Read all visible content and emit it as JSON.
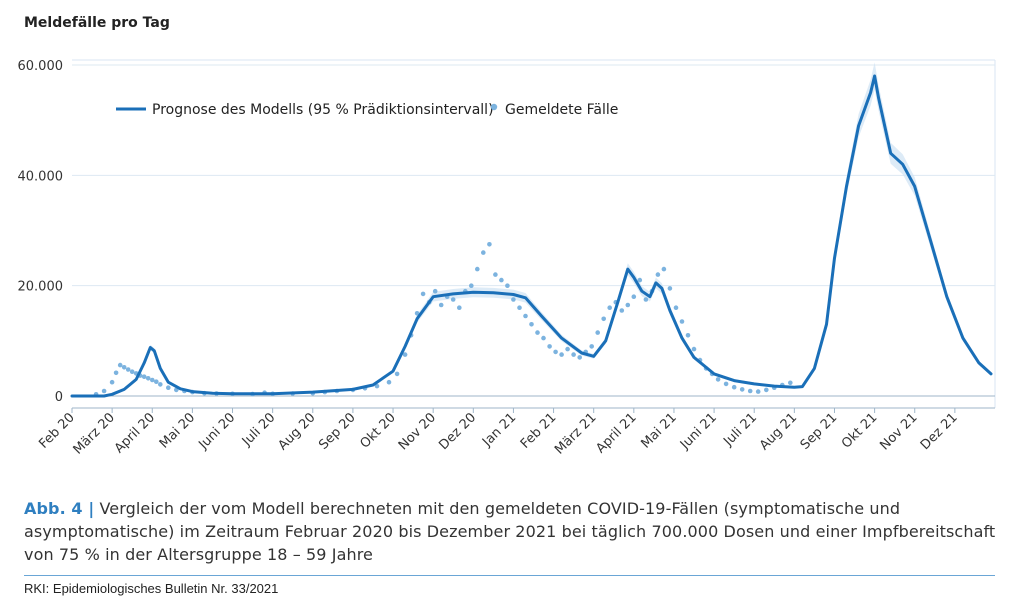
{
  "chart_data": {
    "type": "line",
    "ylabel": "Meldefälle pro Tag",
    "ylim": [
      0,
      60000
    ],
    "yticks": [
      0,
      20000,
      40000,
      60000
    ],
    "ytick_labels": [
      "0",
      "20.000",
      "40.000",
      "60.000"
    ],
    "x_categories": [
      "Feb 20",
      "März 20",
      "April 20",
      "Mai 20",
      "Juni 20",
      "Juli 20",
      "Aug 20",
      "Sep 20",
      "Okt 20",
      "Nov 20",
      "Dez 20",
      "Jan 21",
      "Feb 21",
      "März 21",
      "April 21",
      "Mai 21",
      "Juni 21",
      "Juli 21",
      "Aug 21",
      "Sep 21",
      "Okt 21",
      "Nov 21",
      "Dez 21"
    ],
    "legend_position": "top-left",
    "grid": "horizontal",
    "series": [
      {
        "name": "Prognose des Modells (95 % Prädiktionsintervall)",
        "kind": "line",
        "color": "#1a6fb8",
        "x": [
          0,
          0.8,
          1.0,
          1.3,
          1.6,
          1.8,
          1.95,
          2.05,
          2.2,
          2.4,
          2.7,
          3.0,
          3.5,
          4.0,
          5.0,
          6.0,
          7.0,
          7.5,
          8.0,
          8.3,
          8.6,
          9.0,
          9.5,
          10.0,
          10.5,
          11.0,
          11.3,
          11.7,
          12.2,
          12.7,
          13.0,
          13.3,
          13.6,
          13.85,
          14.0,
          14.2,
          14.4,
          14.55,
          14.7,
          14.9,
          15.2,
          15.5,
          16.0,
          16.5,
          17.0,
          17.5,
          18.0,
          18.2,
          18.5,
          18.8,
          19.0,
          19.3,
          19.6,
          19.9,
          20.0,
          20.1,
          20.4,
          20.7,
          21.0,
          21.4,
          21.8,
          22.2,
          22.6,
          22.9
        ],
        "y": [
          0,
          0,
          300,
          1200,
          3000,
          6000,
          8800,
          8200,
          5000,
          2500,
          1300,
          800,
          500,
          400,
          400,
          700,
          1200,
          2000,
          4500,
          9000,
          14000,
          18000,
          18500,
          18800,
          18700,
          18400,
          17800,
          14500,
          10500,
          7800,
          7200,
          10000,
          17000,
          23000,
          21500,
          19000,
          18000,
          20500,
          19500,
          15500,
          10500,
          7000,
          4000,
          2800,
          2200,
          1800,
          1600,
          1700,
          5000,
          13000,
          25000,
          38000,
          49000,
          55000,
          58000,
          54000,
          44000,
          42000,
          38000,
          28000,
          18000,
          10500,
          6000,
          4000
        ]
      },
      {
        "name": "Gemeldete Fälle",
        "kind": "scatter",
        "color": "#7cb3df",
        "x": [
          0.6,
          0.8,
          1.0,
          1.1,
          1.2,
          1.3,
          1.4,
          1.5,
          1.6,
          1.7,
          1.8,
          1.9,
          2.0,
          2.1,
          2.2,
          2.4,
          2.6,
          2.8,
          3.0,
          3.3,
          3.6,
          4.0,
          4.5,
          4.8,
          5.0,
          5.5,
          6.0,
          6.3,
          6.6,
          7.0,
          7.3,
          7.6,
          7.9,
          8.1,
          8.3,
          8.45,
          8.6,
          8.75,
          8.9,
          9.05,
          9.2,
          9.35,
          9.5,
          9.65,
          9.8,
          9.95,
          10.1,
          10.25,
          10.4,
          10.55,
          10.7,
          10.85,
          11.0,
          11.15,
          11.3,
          11.45,
          11.6,
          11.75,
          11.9,
          12.05,
          12.2,
          12.35,
          12.5,
          12.65,
          12.8,
          12.95,
          13.1,
          13.25,
          13.4,
          13.55,
          13.7,
          13.85,
          14.0,
          14.15,
          14.3,
          14.45,
          14.6,
          14.75,
          14.9,
          15.05,
          15.2,
          15.35,
          15.5,
          15.65,
          15.8,
          15.95,
          16.1,
          16.3,
          16.5,
          16.7,
          16.9,
          17.1,
          17.3,
          17.5,
          17.7,
          17.9
        ],
        "y": [
          300,
          900,
          2500,
          4200,
          5600,
          5200,
          4800,
          4400,
          4100,
          3700,
          3500,
          3200,
          2900,
          2600,
          2100,
          1500,
          1100,
          900,
          700,
          500,
          450,
          400,
          350,
          600,
          400,
          450,
          500,
          700,
          900,
          1100,
          1400,
          1800,
          2500,
          4000,
          7500,
          11000,
          15000,
          18500,
          17000,
          19000,
          16500,
          18000,
          17500,
          16000,
          19000,
          20000,
          23000,
          26000,
          27500,
          22000,
          21000,
          20000,
          17500,
          16000,
          14500,
          13000,
          11500,
          10500,
          9000,
          8000,
          7500,
          8500,
          7500,
          7000,
          8000,
          9000,
          11500,
          14000,
          16000,
          17000,
          15500,
          16500,
          18000,
          21000,
          17500,
          19000,
          22000,
          23000,
          19500,
          16000,
          13500,
          11000,
          8500,
          6500,
          5000,
          4000,
          3000,
          2200,
          1600,
          1200,
          900,
          800,
          1100,
          1500,
          2000,
          2400
        ]
      }
    ]
  },
  "caption": {
    "label": "Abb. 4 |",
    "text": " Vergleich der vom Modell berechneten mit den gemeldeten COVID-19-Fällen (symptomatische und asymptomatische) im Zeitraum Februar 2020 bis Dezember 2021 bei täglich 700.000 Dosen und einer Impfbereitschaft von 75 % in der Altersgruppe 18 – 59 Jahre"
  },
  "source": "RKI: Epidemiologisches Bulletin Nr. 33/2021"
}
